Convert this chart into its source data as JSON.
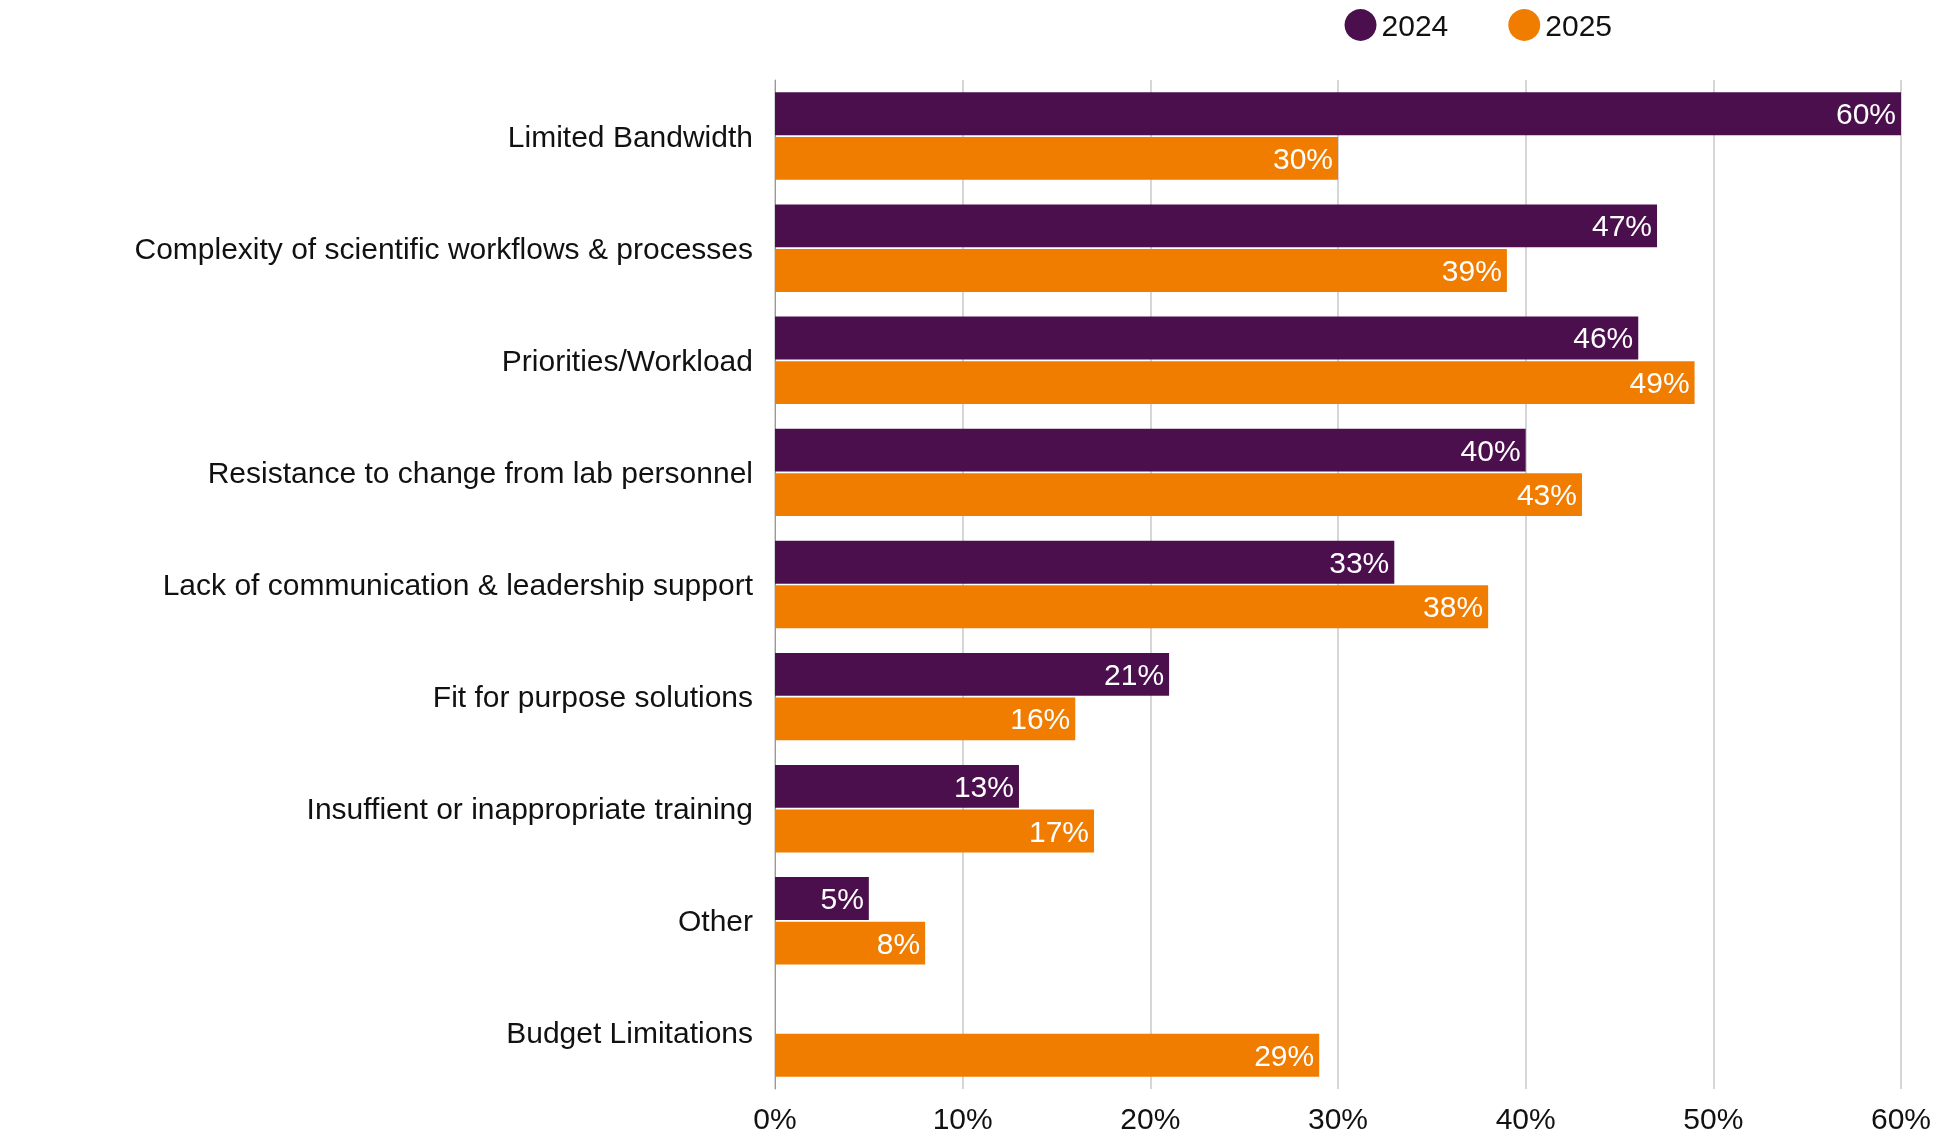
{
  "chart_data": {
    "type": "bar",
    "orientation": "horizontal",
    "categories": [
      "Limited Bandwidth",
      "Complexity of scientific workflows & processes",
      "Priorities/Workload",
      "Resistance to change from lab personnel",
      "Lack of communication & leadership support",
      "Fit for purpose solutions",
      "Insuffient or inappropriate training",
      "Other",
      "Budget Limitations"
    ],
    "series": [
      {
        "name": "2024",
        "color": "#4b0f4e",
        "values": [
          60,
          47,
          46,
          40,
          33,
          21,
          13,
          5,
          null
        ],
        "value_labels": [
          "60%",
          "47%",
          "46%",
          "40%",
          "33%",
          "21%",
          "13%",
          "5%",
          null
        ]
      },
      {
        "name": "2025",
        "color": "#f07c00",
        "values": [
          30,
          39,
          49,
          43,
          38,
          16,
          17,
          8,
          29
        ],
        "value_labels": [
          "30%",
          "39%",
          "49%",
          "43%",
          "38%",
          "16%",
          "17%",
          "8%",
          "29%"
        ]
      }
    ],
    "xlim": [
      0,
      60
    ],
    "xticks": [
      {
        "value": 0,
        "label": "0%"
      },
      {
        "value": 10,
        "label": "10%"
      },
      {
        "value": 20,
        "label": "20%"
      },
      {
        "value": 30,
        "label": "30%"
      },
      {
        "value": 40,
        "label": "40%"
      },
      {
        "value": 50,
        "label": "50%"
      },
      {
        "value": 60,
        "label": "60%"
      }
    ],
    "grid": "x",
    "legend": "top right"
  }
}
